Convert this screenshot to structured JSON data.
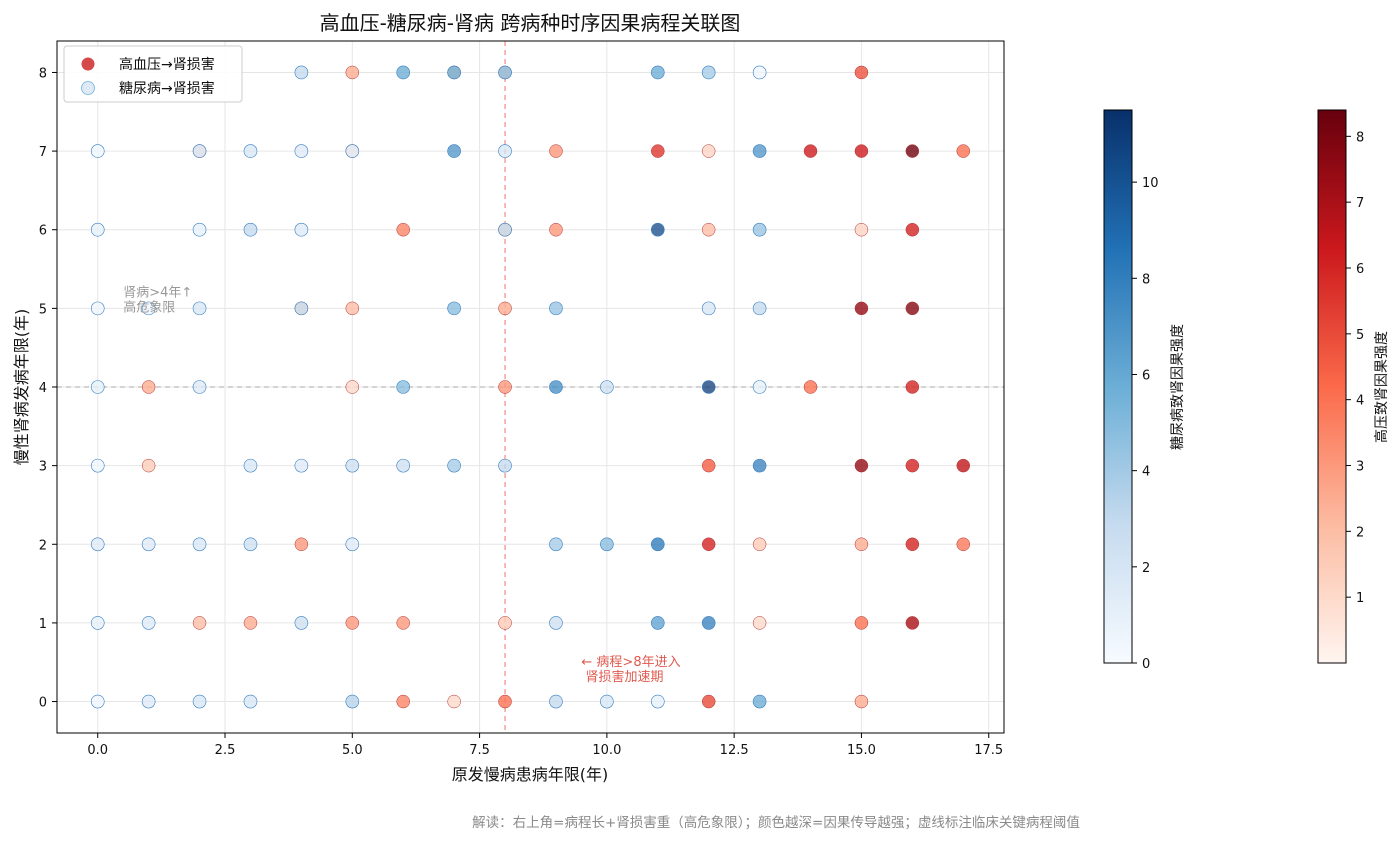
{
  "chart_data": {
    "type": "scatter",
    "title": "高血压-糖尿病-肾病 跨病种时序因果病程关联图",
    "xlabel": "原发慢病患病年限(年)",
    "ylabel": "慢性肾病发病年限(年)",
    "xlim": [
      -0.8,
      17.8
    ],
    "ylim": [
      -0.4,
      8.4
    ],
    "x_ticks": [
      "0.0",
      "2.5",
      "5.0",
      "7.5",
      "10.0",
      "12.5",
      "15.0",
      "17.5"
    ],
    "y_ticks": [
      "0",
      "1",
      "2",
      "3",
      "4",
      "5",
      "6",
      "7",
      "8"
    ],
    "grid": true,
    "legend_position": "top-left",
    "series": [
      {
        "name": "高血压→肾损害",
        "colormap": "Reds",
        "color": "#d44a4a",
        "points": [
          {
            "x": 5,
            "y": 8,
            "c": 2.5
          },
          {
            "x": 7,
            "y": 8,
            "c": 1.5
          },
          {
            "x": 8,
            "y": 8,
            "c": 1.6
          },
          {
            "x": 15,
            "y": 8,
            "c": 4.8
          },
          {
            "x": 2,
            "y": 7,
            "c": 1.0
          },
          {
            "x": 5,
            "y": 7,
            "c": 0.8
          },
          {
            "x": 9,
            "y": 7,
            "c": 3.0
          },
          {
            "x": 11,
            "y": 7,
            "c": 5.5
          },
          {
            "x": 12,
            "y": 7,
            "c": 1.2
          },
          {
            "x": 14,
            "y": 7,
            "c": 6.2
          },
          {
            "x": 15,
            "y": 7,
            "c": 6.2
          },
          {
            "x": 16,
            "y": 7,
            "c": 8.2
          },
          {
            "x": 17,
            "y": 7,
            "c": 4.0
          },
          {
            "x": 6,
            "y": 6,
            "c": 3.5
          },
          {
            "x": 8,
            "y": 6,
            "c": 1.5
          },
          {
            "x": 9,
            "y": 6,
            "c": 3.0
          },
          {
            "x": 12,
            "y": 6,
            "c": 2.0
          },
          {
            "x": 15,
            "y": 6,
            "c": 1.2
          },
          {
            "x": 16,
            "y": 6,
            "c": 6.0
          },
          {
            "x": 4,
            "y": 5,
            "c": 1.2
          },
          {
            "x": 5,
            "y": 5,
            "c": 2.0
          },
          {
            "x": 8,
            "y": 5,
            "c": 2.5
          },
          {
            "x": 15,
            "y": 5,
            "c": 7.5
          },
          {
            "x": 16,
            "y": 5,
            "c": 7.8
          },
          {
            "x": 1,
            "y": 4,
            "c": 2.5
          },
          {
            "x": 5,
            "y": 4,
            "c": 1.0
          },
          {
            "x": 8,
            "y": 4,
            "c": 3.0
          },
          {
            "x": 14,
            "y": 4,
            "c": 4.0
          },
          {
            "x": 16,
            "y": 4,
            "c": 6.0
          },
          {
            "x": 1,
            "y": 3,
            "c": 1.5
          },
          {
            "x": 12,
            "y": 3,
            "c": 4.5
          },
          {
            "x": 15,
            "y": 3,
            "c": 7.5
          },
          {
            "x": 16,
            "y": 3,
            "c": 6.0
          },
          {
            "x": 17,
            "y": 3,
            "c": 6.5
          },
          {
            "x": 4,
            "y": 2,
            "c": 3.0
          },
          {
            "x": 12,
            "y": 2,
            "c": 6.0
          },
          {
            "x": 13,
            "y": 2,
            "c": 1.5
          },
          {
            "x": 15,
            "y": 2,
            "c": 2.5
          },
          {
            "x": 16,
            "y": 2,
            "c": 6.0
          },
          {
            "x": 17,
            "y": 2,
            "c": 3.8
          },
          {
            "x": 2,
            "y": 1,
            "c": 2.0
          },
          {
            "x": 3,
            "y": 1,
            "c": 2.5
          },
          {
            "x": 5,
            "y": 1,
            "c": 3.0
          },
          {
            "x": 6,
            "y": 1,
            "c": 3.0
          },
          {
            "x": 8,
            "y": 1,
            "c": 1.5
          },
          {
            "x": 13,
            "y": 1,
            "c": 1.0
          },
          {
            "x": 15,
            "y": 1,
            "c": 4.0
          },
          {
            "x": 16,
            "y": 1,
            "c": 7.0
          },
          {
            "x": 6,
            "y": 0,
            "c": 3.5
          },
          {
            "x": 7,
            "y": 0,
            "c": 1.0
          },
          {
            "x": 8,
            "y": 0,
            "c": 4.0
          },
          {
            "x": 12,
            "y": 0,
            "c": 5.0
          },
          {
            "x": 15,
            "y": 0,
            "c": 2.5
          }
        ]
      },
      {
        "name": "糖尿病→肾损害",
        "colormap": "Blues",
        "color": "#deebf7",
        "points": [
          {
            "x": 4,
            "y": 8,
            "c": 3.0
          },
          {
            "x": 6,
            "y": 8,
            "c": 6.0
          },
          {
            "x": 7,
            "y": 8,
            "c": 6.0
          },
          {
            "x": 8,
            "y": 8,
            "c": 5.0
          },
          {
            "x": 11,
            "y": 8,
            "c": 6.0
          },
          {
            "x": 12,
            "y": 8,
            "c": 4.0
          },
          {
            "x": 13,
            "y": 8,
            "c": 0.5
          },
          {
            "x": 0,
            "y": 7,
            "c": 0.5
          },
          {
            "x": 2,
            "y": 7,
            "c": 2.0
          },
          {
            "x": 3,
            "y": 7,
            "c": 2.0
          },
          {
            "x": 4,
            "y": 7,
            "c": 1.5
          },
          {
            "x": 5,
            "y": 7,
            "c": 1.5
          },
          {
            "x": 7,
            "y": 7,
            "c": 7.0
          },
          {
            "x": 8,
            "y": 7,
            "c": 2.0
          },
          {
            "x": 13,
            "y": 7,
            "c": 7.0
          },
          {
            "x": 0,
            "y": 6,
            "c": 1.0
          },
          {
            "x": 2,
            "y": 6,
            "c": 1.0
          },
          {
            "x": 3,
            "y": 6,
            "c": 3.0
          },
          {
            "x": 4,
            "y": 6,
            "c": 1.5
          },
          {
            "x": 8,
            "y": 6,
            "c": 3.0
          },
          {
            "x": 11,
            "y": 6,
            "c": 10.5
          },
          {
            "x": 13,
            "y": 6,
            "c": 4.5
          },
          {
            "x": 0,
            "y": 5,
            "c": 0.5
          },
          {
            "x": 1,
            "y": 5,
            "c": 0.5
          },
          {
            "x": 2,
            "y": 5,
            "c": 2.0
          },
          {
            "x": 4,
            "y": 5,
            "c": 3.0
          },
          {
            "x": 7,
            "y": 5,
            "c": 5.0
          },
          {
            "x": 9,
            "y": 5,
            "c": 4.5
          },
          {
            "x": 12,
            "y": 5,
            "c": 2.0
          },
          {
            "x": 13,
            "y": 5,
            "c": 3.0
          },
          {
            "x": 0,
            "y": 4,
            "c": 1.0
          },
          {
            "x": 2,
            "y": 4,
            "c": 1.5
          },
          {
            "x": 6,
            "y": 4,
            "c": 5.0
          },
          {
            "x": 9,
            "y": 4,
            "c": 7.5
          },
          {
            "x": 10,
            "y": 4,
            "c": 2.5
          },
          {
            "x": 12,
            "y": 4,
            "c": 11.0
          },
          {
            "x": 13,
            "y": 4,
            "c": 1.0
          },
          {
            "x": 0,
            "y": 3,
            "c": 0.5
          },
          {
            "x": 3,
            "y": 3,
            "c": 2.0
          },
          {
            "x": 4,
            "y": 3,
            "c": 1.5
          },
          {
            "x": 5,
            "y": 3,
            "c": 2.5
          },
          {
            "x": 6,
            "y": 3,
            "c": 2.5
          },
          {
            "x": 7,
            "y": 3,
            "c": 4.0
          },
          {
            "x": 8,
            "y": 3,
            "c": 3.0
          },
          {
            "x": 13,
            "y": 3,
            "c": 8.0
          },
          {
            "x": 0,
            "y": 2,
            "c": 1.5
          },
          {
            "x": 1,
            "y": 2,
            "c": 1.5
          },
          {
            "x": 2,
            "y": 2,
            "c": 2.0
          },
          {
            "x": 3,
            "y": 2,
            "c": 2.5
          },
          {
            "x": 5,
            "y": 2,
            "c": 1.5
          },
          {
            "x": 9,
            "y": 2,
            "c": 4.0
          },
          {
            "x": 10,
            "y": 2,
            "c": 5.0
          },
          {
            "x": 11,
            "y": 2,
            "c": 8.5
          },
          {
            "x": 0,
            "y": 1,
            "c": 1.0
          },
          {
            "x": 1,
            "y": 1,
            "c": 1.5
          },
          {
            "x": 4,
            "y": 1,
            "c": 2.5
          },
          {
            "x": 9,
            "y": 1,
            "c": 2.5
          },
          {
            "x": 11,
            "y": 1,
            "c": 6.5
          },
          {
            "x": 12,
            "y": 1,
            "c": 8.0
          },
          {
            "x": 0,
            "y": 0,
            "c": 0.5
          },
          {
            "x": 1,
            "y": 0,
            "c": 1.5
          },
          {
            "x": 2,
            "y": 0,
            "c": 2.0
          },
          {
            "x": 3,
            "y": 0,
            "c": 2.0
          },
          {
            "x": 5,
            "y": 0,
            "c": 3.5
          },
          {
            "x": 9,
            "y": 0,
            "c": 3.0
          },
          {
            "x": 10,
            "y": 0,
            "c": 2.0
          },
          {
            "x": 11,
            "y": 0,
            "c": 1.0
          },
          {
            "x": 13,
            "y": 0,
            "c": 6.0
          }
        ]
      }
    ],
    "reference_lines": [
      {
        "axis": "x",
        "value": 8,
        "color": "#f28b82"
      },
      {
        "axis": "y",
        "value": 4,
        "color": "#bbbbbb"
      }
    ],
    "annotations": [
      {
        "id": "ann_kidney",
        "lines": [
          "肾病>4年↑",
          "高危象限"
        ],
        "x": 0.5,
        "y": 5.15,
        "color": "#999999"
      },
      {
        "id": "ann_course",
        "lines": [
          "← 病程>8年进入",
          "   肾损害加速期"
        ],
        "x": 9.5,
        "y": 0.45,
        "color": "#e05a4f"
      }
    ],
    "colorbars": [
      {
        "label": "糖尿病致肾因果强度",
        "colormap": "Blues",
        "min": 0,
        "max": 11.5,
        "ticks": [
          "0",
          "2",
          "4",
          "6",
          "8",
          "10"
        ]
      },
      {
        "label": "高压致肾因果强度",
        "colormap": "Reds",
        "min": 0,
        "max": 8.4,
        "ticks": [
          "1",
          "2",
          "3",
          "4",
          "5",
          "6",
          "7",
          "8"
        ]
      }
    ]
  },
  "footnote": "解读：右上角=病程长+肾损害重（高危象限）；颜色越深=因果传导越强；虚线标注临床关键病程阈值"
}
